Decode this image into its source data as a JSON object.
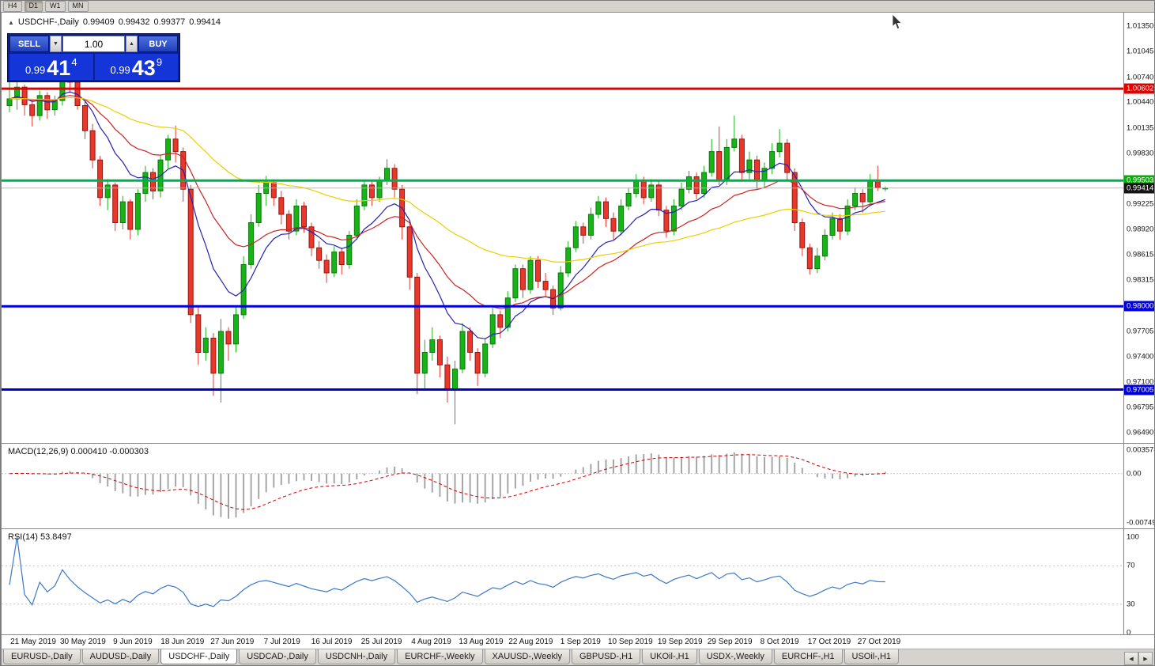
{
  "toolbar": {
    "periods": [
      "H4",
      "D1",
      "W1",
      "MN"
    ],
    "active": "D1"
  },
  "header": {
    "icon": "▲",
    "symbol": "USDCHF-,Daily",
    "open": "0.99409",
    "high": "0.99432",
    "low": "0.99377",
    "close": "0.99414"
  },
  "trade_panel": {
    "sell_label": "SELL",
    "buy_label": "BUY",
    "volume": "1.00",
    "vol_down_icon": "▼",
    "vol_up_icon": "▲",
    "sell_price": {
      "prefix": "0.99",
      "main": "41",
      "sup": "4"
    },
    "buy_price": {
      "prefix": "0.99",
      "main": "43",
      "sup": "9"
    }
  },
  "price_axis": {
    "ticks": [
      "1.01350",
      "1.01045",
      "1.00740",
      "1.00440",
      "1.00135",
      "0.99830",
      "0.99530",
      "0.99225",
      "0.98920",
      "0.98615",
      "0.98315",
      "0.98010",
      "0.97705",
      "0.97400",
      "0.97100",
      "0.96795",
      "0.96490"
    ],
    "markers": [
      {
        "label": "1.00602",
        "price": 1.00602,
        "color": "#e00000"
      },
      {
        "label": "0.99503",
        "price": 0.99503,
        "color": "#0fa80f"
      },
      {
        "label": "0.99414",
        "price": 0.99414,
        "color": "#141414"
      },
      {
        "label": "0.98000",
        "price": 0.98,
        "color": "#0000dd"
      },
      {
        "label": "0.97005",
        "price": 0.97005,
        "color": "#0000dd"
      }
    ]
  },
  "chart_data": {
    "type": "candlestick",
    "symbol": "USDCHF",
    "period": "Daily",
    "ohlc_last": {
      "open": 0.99409,
      "high": 0.99432,
      "low": 0.99377,
      "close": 0.99414
    },
    "price_anchors": {
      "top_price": 1.0135,
      "bottom_price": 0.9649
    },
    "up_color": "#17b317",
    "down_color": "#e8372d",
    "hlines": [
      {
        "price": 1.00602,
        "color": "#e00000",
        "width": 3
      },
      {
        "price": 0.99503,
        "color": "#00b050",
        "width": 3
      },
      {
        "price": 0.98,
        "color": "#0000dd",
        "width": 3
      },
      {
        "price": 0.97005,
        "color": "#0000dd",
        "width": 3
      },
      {
        "price": 0.99414,
        "color": "#b8b8b8",
        "width": 1
      }
    ],
    "moving_averages": [
      {
        "period": 10,
        "color": "#2222b2"
      },
      {
        "period": 21,
        "color": "#cc2222"
      },
      {
        "period": 55,
        "color": "#e8cf00"
      }
    ],
    "date_labels": [
      "21 May 2019",
      "30 May 2019",
      "9 Jun 2019",
      "18 Jun 2019",
      "27 Jun 2019",
      "7 Jul 2019",
      "16 Jul 2019",
      "25 Jul 2019",
      "4 Aug 2019",
      "13 Aug 2019",
      "22 Aug 2019",
      "1 Sep 2019",
      "10 Sep 2019",
      "19 Sep 2019",
      "29 Sep 2019",
      "8 Oct 2019",
      "17 Oct 2019",
      "27 Oct 2019"
    ],
    "candles": [
      [
        1.004,
        1.0074,
        1.0032,
        1.0048
      ],
      [
        1.0048,
        1.0068,
        1.0035,
        1.0062
      ],
      [
        1.0062,
        1.0065,
        1.0028,
        1.0041
      ],
      [
        1.0041,
        1.0048,
        1.0015,
        1.0028
      ],
      [
        1.0028,
        1.0058,
        1.0022,
        1.0052
      ],
      [
        1.0052,
        1.0056,
        1.0024,
        1.0035
      ],
      [
        1.0035,
        1.0052,
        1.0028,
        1.0046
      ],
      [
        1.0046,
        1.01,
        1.004,
        1.0095
      ],
      [
        1.0095,
        1.0102,
        1.0055,
        1.0068
      ],
      [
        1.0068,
        1.0075,
        1.0035,
        1.004
      ],
      [
        1.004,
        1.0045,
        1.0,
        1.001
      ],
      [
        1.001,
        1.0018,
        0.9965,
        0.9975
      ],
      [
        0.9975,
        0.998,
        0.992,
        0.993
      ],
      [
        0.993,
        0.9952,
        0.9915,
        0.9945
      ],
      [
        0.9945,
        0.9948,
        0.989,
        0.99
      ],
      [
        0.99,
        0.9932,
        0.9892,
        0.9925
      ],
      [
        0.9925,
        0.9928,
        0.988,
        0.9892
      ],
      [
        0.9892,
        0.994,
        0.9885,
        0.9935
      ],
      [
        0.9935,
        0.9968,
        0.9925,
        0.996
      ],
      [
        0.996,
        0.9965,
        0.9928,
        0.9938
      ],
      [
        0.9938,
        0.998,
        0.993,
        0.9975
      ],
      [
        0.9975,
        1.0005,
        0.9965,
        1.0
      ],
      [
        1.0,
        1.0016,
        0.9972,
        0.9985
      ],
      [
        0.9985,
        0.999,
        0.9925,
        0.994
      ],
      [
        0.994,
        0.9945,
        0.978,
        0.979
      ],
      [
        0.979,
        0.98,
        0.973,
        0.9745
      ],
      [
        0.9745,
        0.9775,
        0.9735,
        0.9762
      ],
      [
        0.9762,
        0.9768,
        0.9693,
        0.972
      ],
      [
        0.972,
        0.9785,
        0.9685,
        0.977
      ],
      [
        0.977,
        0.9775,
        0.9735,
        0.9755
      ],
      [
        0.9755,
        0.98,
        0.9745,
        0.979
      ],
      [
        0.979,
        0.986,
        0.9785,
        0.985
      ],
      [
        0.985,
        0.991,
        0.9845,
        0.99
      ],
      [
        0.99,
        0.9945,
        0.9895,
        0.9935
      ],
      [
        0.9935,
        0.9956,
        0.992,
        0.9948
      ],
      [
        0.9948,
        0.9952,
        0.992,
        0.993
      ],
      [
        0.993,
        0.9938,
        0.9898,
        0.991
      ],
      [
        0.991,
        0.9915,
        0.988,
        0.989
      ],
      [
        0.989,
        0.9928,
        0.9885,
        0.992
      ],
      [
        0.992,
        0.9925,
        0.9888,
        0.9895
      ],
      [
        0.9895,
        0.99,
        0.986,
        0.987
      ],
      [
        0.987,
        0.9878,
        0.9845,
        0.9855
      ],
      [
        0.9855,
        0.9862,
        0.9828,
        0.984
      ],
      [
        0.984,
        0.9872,
        0.9835,
        0.9865
      ],
      [
        0.9865,
        0.987,
        0.9838,
        0.985
      ],
      [
        0.985,
        0.989,
        0.9845,
        0.9885
      ],
      [
        0.9885,
        0.9928,
        0.988,
        0.992
      ],
      [
        0.992,
        0.995,
        0.9915,
        0.9945
      ],
      [
        0.9945,
        0.995,
        0.992,
        0.993
      ],
      [
        0.993,
        0.9955,
        0.9925,
        0.995
      ],
      [
        0.995,
        0.9976,
        0.9945,
        0.9965
      ],
      [
        0.9965,
        0.997,
        0.993,
        0.994
      ],
      [
        0.994,
        0.9945,
        0.988,
        0.9895
      ],
      [
        0.9895,
        0.99,
        0.982,
        0.9835
      ],
      [
        0.9835,
        0.984,
        0.9695,
        0.972
      ],
      [
        0.972,
        0.976,
        0.97,
        0.9745
      ],
      [
        0.9745,
        0.9775,
        0.9735,
        0.976
      ],
      [
        0.976,
        0.9765,
        0.9715,
        0.973
      ],
      [
        0.973,
        0.974,
        0.9685,
        0.97
      ],
      [
        0.97,
        0.9735,
        0.9659,
        0.9725
      ],
      [
        0.9725,
        0.978,
        0.972,
        0.977
      ],
      [
        0.977,
        0.9775,
        0.9735,
        0.9745
      ],
      [
        0.9745,
        0.975,
        0.9705,
        0.972
      ],
      [
        0.972,
        0.9762,
        0.9715,
        0.9755
      ],
      [
        0.9755,
        0.9798,
        0.975,
        0.979
      ],
      [
        0.979,
        0.9795,
        0.9762,
        0.9775
      ],
      [
        0.9775,
        0.9818,
        0.977,
        0.981
      ],
      [
        0.981,
        0.985,
        0.9805,
        0.9845
      ],
      [
        0.9845,
        0.985,
        0.981,
        0.982
      ],
      [
        0.982,
        0.986,
        0.9815,
        0.9855
      ],
      [
        0.9855,
        0.986,
        0.9822,
        0.983
      ],
      [
        0.983,
        0.984,
        0.9812,
        0.982
      ],
      [
        0.982,
        0.9825,
        0.979,
        0.9798
      ],
      [
        0.9798,
        0.9848,
        0.9795,
        0.984
      ],
      [
        0.984,
        0.9878,
        0.9835,
        0.987
      ],
      [
        0.987,
        0.9902,
        0.9865,
        0.9895
      ],
      [
        0.9895,
        0.99,
        0.9875,
        0.9885
      ],
      [
        0.9885,
        0.9918,
        0.988,
        0.991
      ],
      [
        0.991,
        0.9932,
        0.9905,
        0.9925
      ],
      [
        0.9925,
        0.993,
        0.9895,
        0.9905
      ],
      [
        0.9905,
        0.9912,
        0.988,
        0.989
      ],
      [
        0.989,
        0.9928,
        0.9885,
        0.992
      ],
      [
        0.992,
        0.9942,
        0.9915,
        0.9935
      ],
      [
        0.9935,
        0.9958,
        0.993,
        0.995
      ],
      [
        0.995,
        0.9955,
        0.9922,
        0.993
      ],
      [
        0.993,
        0.9952,
        0.9925,
        0.9945
      ],
      [
        0.9945,
        0.995,
        0.9908,
        0.9915
      ],
      [
        0.9915,
        0.992,
        0.9882,
        0.989
      ],
      [
        0.989,
        0.9928,
        0.9885,
        0.992
      ],
      [
        0.992,
        0.9948,
        0.9915,
        0.994
      ],
      [
        0.994,
        0.9962,
        0.9935,
        0.9955
      ],
      [
        0.9955,
        0.996,
        0.9928,
        0.9935
      ],
      [
        0.9935,
        0.9968,
        0.993,
        0.996
      ],
      [
        0.996,
        1.0,
        0.9955,
        0.9985
      ],
      [
        0.9985,
        1.0015,
        0.9945,
        0.995
      ],
      [
        0.995,
        1.0,
        0.9945,
        0.999
      ],
      [
        0.999,
        1.0028,
        0.9985,
        1.0
      ],
      [
        1.0,
        1.0005,
        0.995,
        0.996
      ],
      [
        0.996,
        0.9985,
        0.9952,
        0.9975
      ],
      [
        0.9975,
        0.998,
        0.994,
        0.995
      ],
      [
        0.995,
        0.9972,
        0.9942,
        0.9965
      ],
      [
        0.9965,
        0.9995,
        0.9958,
        0.9985
      ],
      [
        0.9985,
        1.0012,
        0.9978,
        0.9995
      ],
      [
        0.9995,
        1.0,
        0.995,
        0.996
      ],
      [
        0.996,
        0.9965,
        0.989,
        0.99
      ],
      [
        0.99,
        0.9905,
        0.986,
        0.987
      ],
      [
        0.987,
        0.9875,
        0.9838,
        0.9845
      ],
      [
        0.9845,
        0.987,
        0.984,
        0.986
      ],
      [
        0.986,
        0.9892,
        0.9855,
        0.9885
      ],
      [
        0.9885,
        0.9912,
        0.988,
        0.9905
      ],
      [
        0.9905,
        0.991,
        0.988,
        0.989
      ],
      [
        0.989,
        0.9928,
        0.9885,
        0.992
      ],
      [
        0.992,
        0.9942,
        0.9915,
        0.9935
      ],
      [
        0.9935,
        0.994,
        0.9912,
        0.9925
      ],
      [
        0.9925,
        0.9958,
        0.992,
        0.995
      ],
      [
        0.995,
        0.9968,
        0.9938,
        0.9942
      ],
      [
        0.99409,
        0.99432,
        0.99377,
        0.99414
      ]
    ],
    "macd": {
      "fast": 12,
      "slow": 26,
      "signal": 9,
      "label": "MACD(12,26,9) 0.000410 -0.000303",
      "range": [
        -0.00749,
        0.003574
      ],
      "axis_labels": [
        {
          "label": "0.003574",
          "value": 0.003574
        },
        {
          "label": "0.00",
          "value": 0
        },
        {
          "label": "-0.00749",
          "value": -0.00749
        }
      ]
    },
    "rsi": {
      "period": 14,
      "label": "RSI(14) 53.8497",
      "axis_labels": [
        100,
        70,
        30,
        0
      ],
      "levels": [
        70,
        30
      ],
      "line_color": "#3c78c8"
    }
  },
  "tabs": {
    "items": [
      "EURUSD-,Daily",
      "AUDUSD-,Daily",
      "USDCHF-,Daily",
      "USDCAD-,Daily",
      "USDCNH-,Daily",
      "EURCHF-,Weekly",
      "XAUUSD-,Weekly",
      "GBPUSD-,H1",
      "UKOil-,H1",
      "USDX-,Weekly",
      "EURCHF-,H1",
      "USOil-,H1"
    ],
    "active_index": 2,
    "scroll_left_icon": "◀",
    "scroll_right_icon": "▶"
  }
}
